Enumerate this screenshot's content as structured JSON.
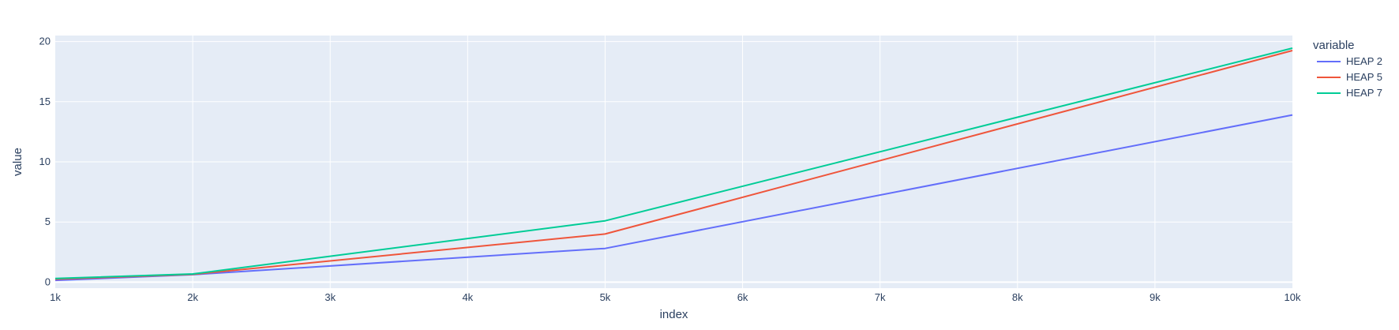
{
  "chart_data": {
    "type": "line",
    "xlabel": "index",
    "ylabel": "value",
    "x": [
      1000,
      2000,
      5000,
      10000
    ],
    "xlim": [
      1000,
      10000
    ],
    "ylim": [
      -0.5,
      20.5
    ],
    "x_ticks": [
      {
        "value": 1000,
        "label": "1k"
      },
      {
        "value": 2000,
        "label": "2k"
      },
      {
        "value": 3000,
        "label": "3k"
      },
      {
        "value": 4000,
        "label": "4k"
      },
      {
        "value": 5000,
        "label": "5k"
      },
      {
        "value": 6000,
        "label": "6k"
      },
      {
        "value": 7000,
        "label": "7k"
      },
      {
        "value": 8000,
        "label": "8k"
      },
      {
        "value": 9000,
        "label": "9k"
      },
      {
        "value": 10000,
        "label": "10k"
      }
    ],
    "y_ticks": [
      {
        "value": 0,
        "label": "0"
      },
      {
        "value": 5,
        "label": "5"
      },
      {
        "value": 10,
        "label": "10"
      },
      {
        "value": 15,
        "label": "15"
      },
      {
        "value": 20,
        "label": "20"
      }
    ],
    "grid": true,
    "legend": {
      "title": "variable",
      "position": "right"
    },
    "series": [
      {
        "name": "HEAP 2",
        "color": "#636efa",
        "values": [
          0.15,
          0.62,
          2.8,
          13.9
        ]
      },
      {
        "name": "HEAP 5",
        "color": "#ef553b",
        "values": [
          0.25,
          0.65,
          4.0,
          19.25
        ]
      },
      {
        "name": "HEAP 7",
        "color": "#00cc96",
        "values": [
          0.3,
          0.68,
          5.1,
          19.45
        ]
      }
    ]
  }
}
